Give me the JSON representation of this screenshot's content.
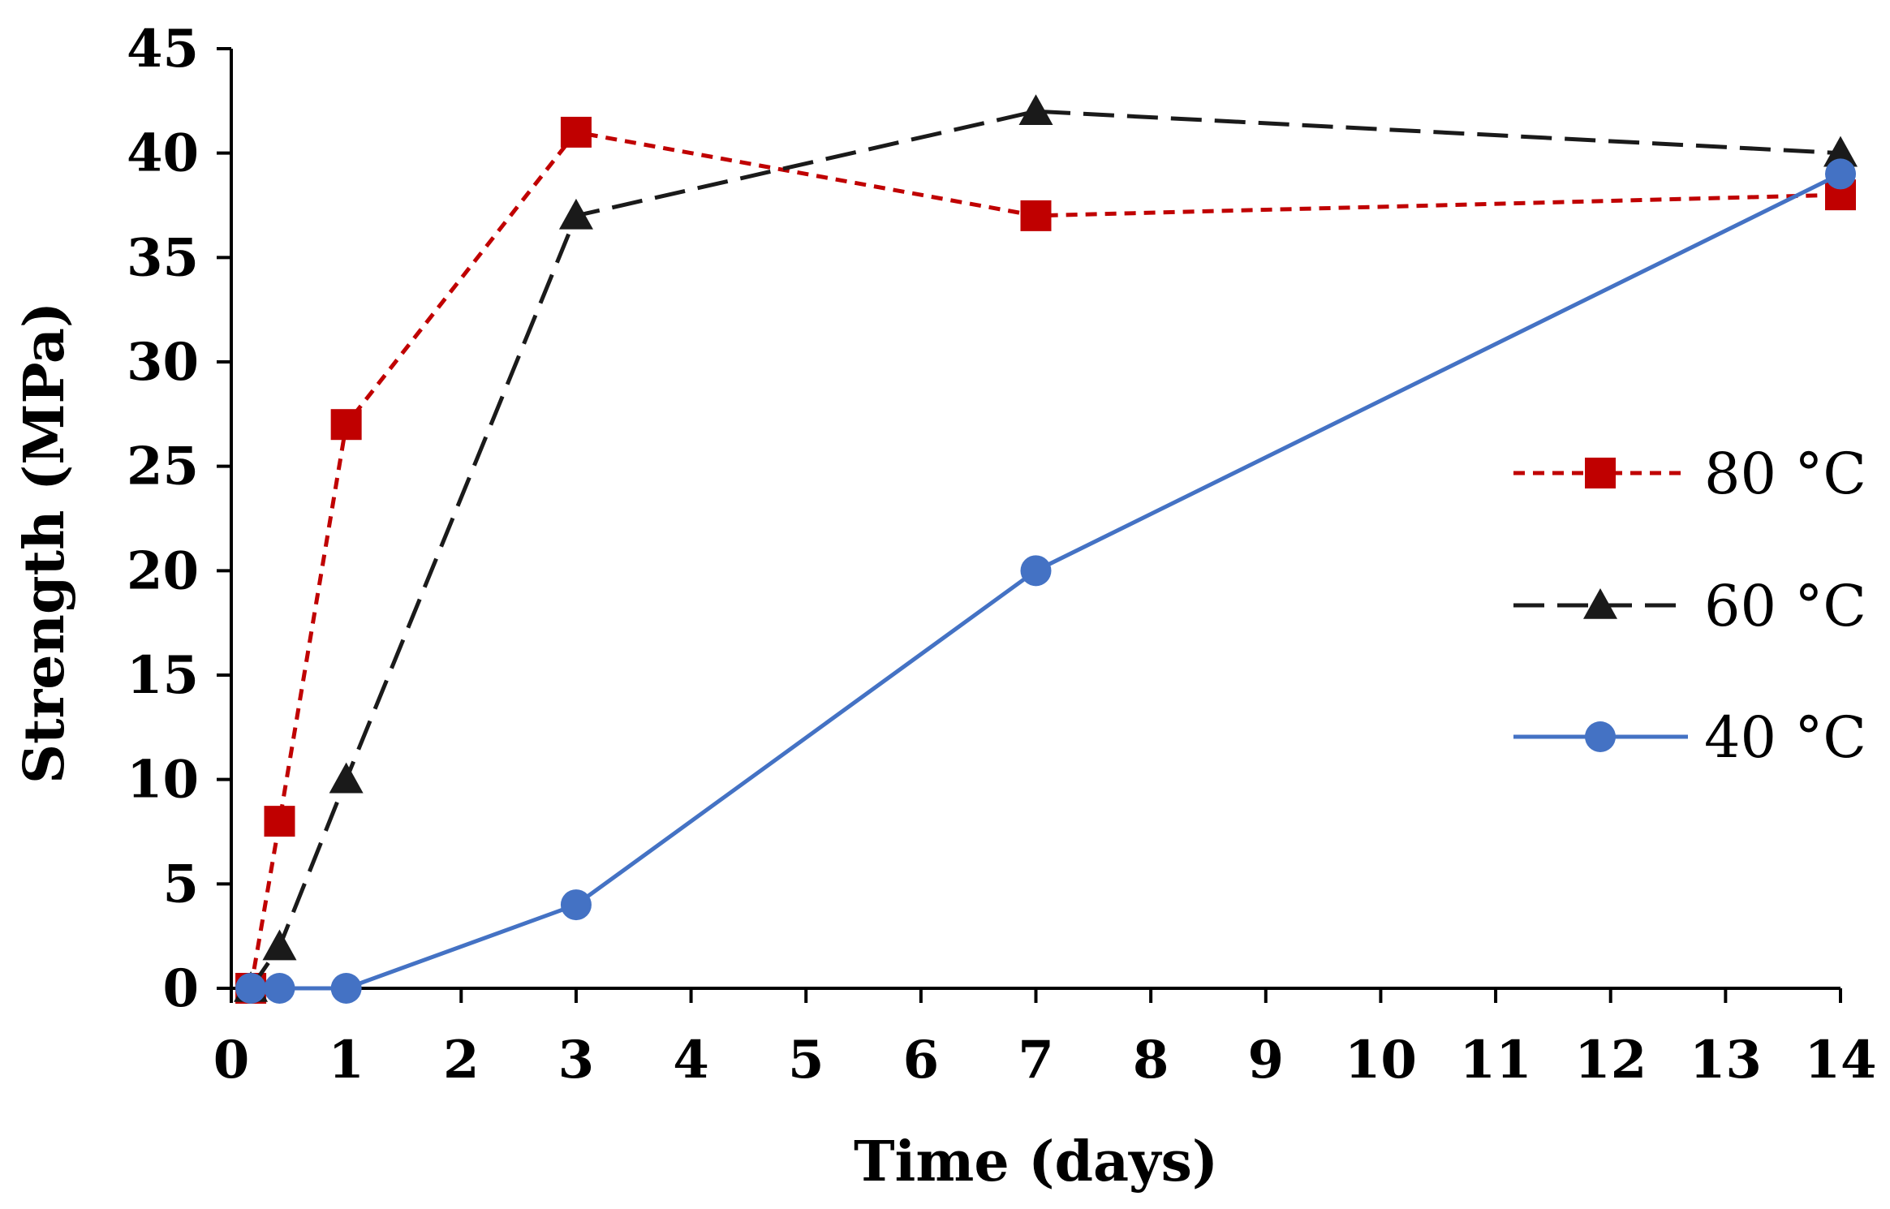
{
  "chart_data": {
    "type": "line",
    "title": "",
    "xlabel": "Time (days)",
    "ylabel": "Strength (MPa)",
    "xlim": [
      0,
      14
    ],
    "ylim": [
      0,
      45
    ],
    "xticks": [
      0,
      1,
      2,
      3,
      4,
      5,
      6,
      7,
      8,
      9,
      10,
      11,
      12,
      13,
      14
    ],
    "yticks": [
      0,
      5,
      10,
      15,
      20,
      25,
      30,
      35,
      40,
      45
    ],
    "grid": false,
    "legend_position": "right",
    "series": [
      {
        "name": "80 °C",
        "color": "#C00000",
        "line_style": "dotted",
        "marker": "square",
        "x": [
          0.17,
          0.42,
          1,
          3,
          7,
          14
        ],
        "y": [
          0,
          8,
          27,
          41,
          37,
          38
        ]
      },
      {
        "name": "60 °C",
        "color": "#1a1a1a",
        "line_style": "dashed",
        "marker": "triangle",
        "x": [
          0.17,
          0.42,
          1,
          3,
          7,
          14
        ],
        "y": [
          0,
          2,
          10,
          37,
          42,
          40
        ]
      },
      {
        "name": "40 °C",
        "color": "#4472C4",
        "line_style": "solid",
        "marker": "circle",
        "x": [
          0.17,
          0.42,
          1,
          3,
          7,
          14
        ],
        "y": [
          0,
          0,
          0,
          4,
          20,
          39
        ]
      }
    ]
  }
}
